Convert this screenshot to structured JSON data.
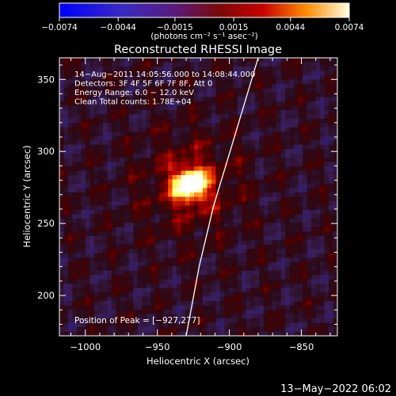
{
  "chart_data": {
    "type": "heatmap",
    "title": "Reconstructed RHESSI Image",
    "xlabel": "Heliocentric X (arcsec)",
    "ylabel": "Heliocentric Y (arcsec)",
    "xlim": [
      -1018,
      -825
    ],
    "ylim": [
      172,
      365
    ],
    "xticks": [
      -1000,
      -950,
      -900,
      -850
    ],
    "xtick_labels": [
      "−1000",
      "−950",
      "−900",
      "−850"
    ],
    "yticks": [
      200,
      250,
      300,
      350
    ],
    "ytick_labels": [
      "200",
      "250",
      "300",
      "350"
    ],
    "colorbar": {
      "range": [
        -0.0074,
        0.0074
      ],
      "ticks": [
        -0.0074,
        -0.0044,
        -0.0015,
        0.0015,
        0.0044,
        0.0074
      ],
      "tick_labels": [
        "−0.0074",
        "−0.0044",
        "−0.0015",
        "0.0015",
        "0.0044",
        "0.0074"
      ],
      "unit_label": "(photons cm⁻² s⁻¹ asec⁻²)"
    },
    "peak": [
      -927,
      277
    ],
    "annotations": [
      "14−Aug−2011 14:05:56.000 to 14:08:44.000",
      "Detectors: 3F 4F 5F 6F 7F 8F, Att 0",
      "Energy Range: 6.0 − 12.0 keV",
      "Clean     Total counts: 1.78E+04"
    ],
    "peak_label": "Position of Peak = [−927,277]",
    "limb_points": [
      [
        -930,
        172
      ],
      [
        -921,
        220
      ],
      [
        -911,
        262
      ],
      [
        -898,
        305
      ],
      [
        -880,
        365
      ]
    ],
    "colors": {
      "background": "#000000",
      "limb": "#ffffff",
      "colormap": [
        "#0000ff",
        "#2a1a8a",
        "#3a1f5a",
        "#2a0a18",
        "#4a0000",
        "#b00000",
        "#ff5a00",
        "#ffff60",
        "#ffffff"
      ]
    }
  },
  "footer": {
    "timestamp": "13−May−2022 06:02"
  }
}
